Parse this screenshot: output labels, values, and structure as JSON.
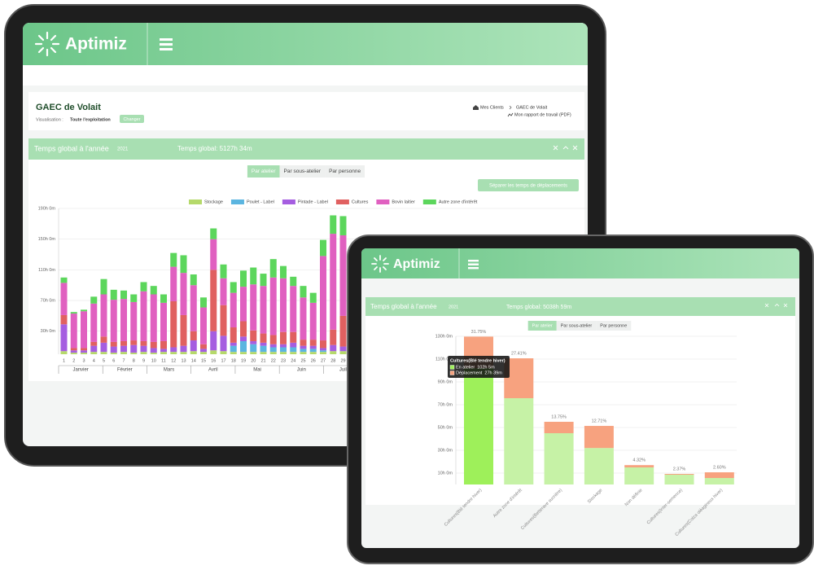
{
  "back_screen": {
    "logo": "Aptimiz",
    "farm_title": "GAEC de Volait",
    "view_label": "Visualisation :",
    "view_value": "Toute l'exploitation",
    "change_button": "Changer",
    "breadcrumb": [
      "Mes Clients",
      "GAEC de Volait"
    ],
    "report_link": "Mon rapport de travail (PDF)",
    "panel_title": "Temps global à l'année",
    "year": "2021",
    "total": "Temps global: 5127h 34m",
    "tabs": [
      "Par atelier",
      "Par sous-atelier",
      "Par personne"
    ],
    "split_button": "Séparer les temps de déplacements"
  },
  "front_screen": {
    "logo": "Aptimiz",
    "panel_title": "Temps global à l'année",
    "year": "2021",
    "total": "Temps global: 5038h 59m",
    "tabs": [
      "Par atelier",
      "Par sous-atelier",
      "Par personne"
    ]
  },
  "chart_data": [
    {
      "type": "bar",
      "stacked": true,
      "categories": [
        "1",
        "2",
        "3",
        "4",
        "5",
        "6",
        "7",
        "8",
        "9",
        "10",
        "11",
        "12",
        "13",
        "14",
        "15",
        "16",
        "17",
        "18",
        "19",
        "20",
        "21",
        "22",
        "23",
        "24",
        "25",
        "26",
        "27",
        "28",
        "29"
      ],
      "months": [
        "Janvier",
        "Février",
        "Mars",
        "Avril",
        "Mai",
        "Juin",
        "Juillet"
      ],
      "series": [
        {
          "name": "Stockage",
          "color": "#b5d96a",
          "values": [
            4,
            2,
            2,
            3,
            3,
            2,
            3,
            2,
            3,
            2,
            3,
            3,
            3,
            4,
            3,
            5,
            4,
            3,
            3,
            3,
            3,
            3,
            3,
            3,
            3,
            3,
            3,
            4,
            4
          ]
        },
        {
          "name": "Poulet - Label",
          "color": "#5bb5e0",
          "values": [
            0,
            0,
            0,
            0,
            0,
            0,
            0,
            0,
            0,
            0,
            0,
            0,
            0,
            0,
            0,
            0,
            0,
            8,
            14,
            10,
            8,
            6,
            6,
            6,
            4,
            4,
            2,
            0,
            0
          ]
        },
        {
          "name": "Pintade - Label",
          "color": "#a55de0",
          "values": [
            35,
            3,
            3,
            8,
            12,
            8,
            8,
            10,
            8,
            6,
            4,
            6,
            8,
            14,
            4,
            25,
            20,
            4,
            6,
            4,
            4,
            4,
            4,
            6,
            4,
            4,
            3,
            8,
            6
          ]
        },
        {
          "name": "Cultures",
          "color": "#e06060",
          "values": [
            12,
            3,
            3,
            5,
            8,
            6,
            6,
            6,
            6,
            8,
            10,
            60,
            40,
            12,
            6,
            80,
            40,
            20,
            20,
            14,
            12,
            12,
            16,
            14,
            8,
            8,
            10,
            20,
            40
          ]
        },
        {
          "name": "Bovin laitier",
          "color": "#e060c0",
          "values": [
            42,
            45,
            48,
            50,
            55,
            55,
            55,
            50,
            65,
            62,
            50,
            45,
            55,
            60,
            48,
            40,
            35,
            45,
            45,
            60,
            62,
            75,
            70,
            60,
            55,
            48,
            110,
            125,
            105
          ]
        },
        {
          "name": "Autre zone d'intérêt",
          "color": "#5cd65c",
          "values": [
            7,
            2,
            2,
            9,
            20,
            13,
            11,
            10,
            12,
            11,
            11,
            18,
            23,
            14,
            13,
            14,
            18,
            14,
            21,
            22,
            16,
            24,
            16,
            12,
            15,
            13,
            21,
            24,
            25
          ]
        }
      ],
      "ylim": [
        0,
        190
      ],
      "yticks": [
        {
          "value": 30,
          "label": "30h 0m"
        },
        {
          "value": 70,
          "label": "70h 0m"
        },
        {
          "value": 110,
          "label": "110h 0m"
        },
        {
          "value": 150,
          "label": "150h 0m"
        },
        {
          "value": 190,
          "label": "190h 0m"
        }
      ],
      "grid": true,
      "legend": "top"
    },
    {
      "type": "bar",
      "stacked": true,
      "categories": [
        "Cultures(Blé tendre hiver)",
        "Autre zone d'intérêt",
        "Cultures(Betterave sucrière)",
        "Stockage",
        "Non définie",
        "Cultures(Inter-semence)",
        "Cultures(Colza oléagineux hiver)"
      ],
      "series": [
        {
          "name": "En atelier",
          "color": "#c6f2a6",
          "values": [
            102.08,
            75.7,
            45,
            32,
            15,
            8.6,
            5.7
          ]
        },
        {
          "name": "Déplacement",
          "color": "#f7a27f",
          "values": [
            27.65,
            35,
            10,
            19.4,
            2,
            0.7,
            5
          ]
        }
      ],
      "share_labels": [
        "31.75%",
        "27.41%",
        "13.75%",
        "12.71%",
        "4.32%",
        "2.37%",
        "2.60%"
      ],
      "ylim": [
        0,
        130
      ],
      "yticks": [
        {
          "value": 10,
          "label": "10h 0m"
        },
        {
          "value": 30,
          "label": "30h 0m"
        },
        {
          "value": 50,
          "label": "50h 0m"
        },
        {
          "value": 70,
          "label": "70h 0m"
        },
        {
          "value": 90,
          "label": "90h 0m"
        },
        {
          "value": 110,
          "label": "110h 0m"
        },
        {
          "value": 130,
          "label": "130h 0m"
        }
      ],
      "grid": true,
      "highlight": {
        "index": 0,
        "color": "#9ef05a"
      },
      "tooltip": {
        "index": 0,
        "title": "Cultures(Blé tendre hiver)",
        "values": [
          "102h 5m",
          "27h 39m"
        ]
      }
    }
  ]
}
